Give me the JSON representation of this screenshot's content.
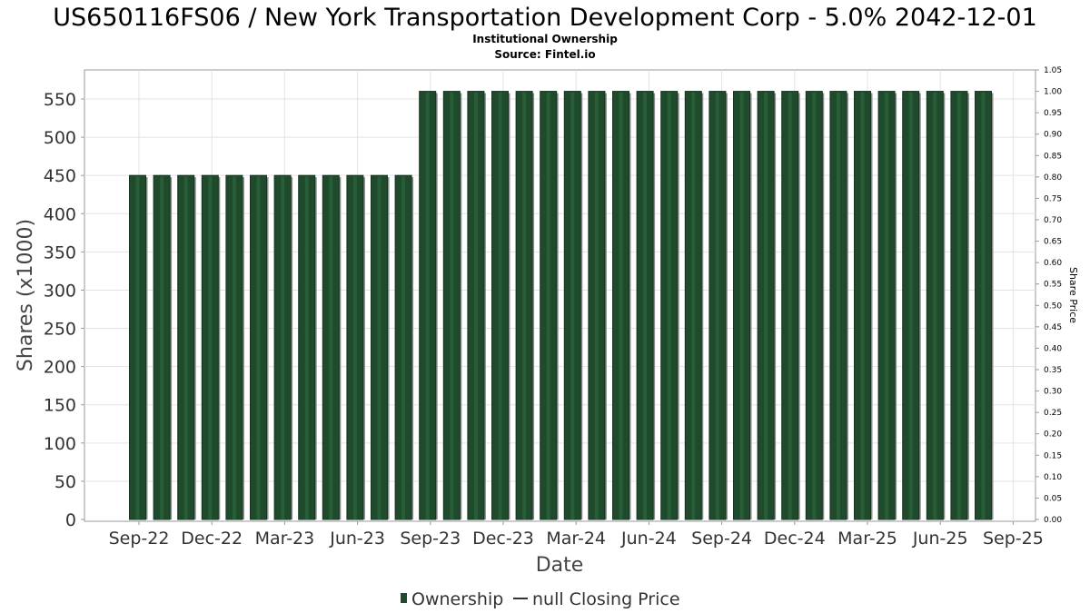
{
  "chart_data": {
    "type": "bar",
    "title": "US650116FS06 / New York Transportation Development Corp - 5.0% 2042-12-01",
    "subtitle_lines": [
      "Institutional Ownership",
      "Source: Fintel.io"
    ],
    "xlabel": "Date",
    "ylabel": "Shares (x1000)",
    "y2label": "Share Price",
    "ylim": [
      0,
      580
    ],
    "y2lim": [
      0,
      1.05
    ],
    "yticks": [
      "0",
      "50",
      "100",
      "150",
      "200",
      "250",
      "300",
      "350",
      "400",
      "450",
      "500",
      "550"
    ],
    "y2ticks": [
      "0.00",
      "0.05",
      "0.10",
      "0.15",
      "0.20",
      "0.25",
      "0.30",
      "0.35",
      "0.40",
      "0.45",
      "0.50",
      "0.55",
      "0.60",
      "0.65",
      "0.70",
      "0.75",
      "0.80",
      "0.85",
      "0.90",
      "0.95",
      "1.00",
      "1.05"
    ],
    "xticks": [
      "Sep-22",
      "Dec-22",
      "Mar-23",
      "Jun-23",
      "Sep-23",
      "Dec-23",
      "Mar-24",
      "Jun-24",
      "Sep-24",
      "Dec-24",
      "Mar-25",
      "Jun-25",
      "Sep-25"
    ],
    "grid": true,
    "legend_position": "bottom-center",
    "colors": {
      "bar": "#1f4a2b",
      "bar_shadow": "#8a8a8a",
      "line": "#333333"
    },
    "series": [
      {
        "name": "Ownership",
        "values": [
          450,
          450,
          450,
          450,
          450,
          450,
          450,
          450,
          450,
          450,
          450,
          450,
          560,
          560,
          560,
          560,
          560,
          560,
          560,
          560,
          560,
          560,
          560,
          560,
          560,
          560,
          560,
          560,
          560,
          560,
          560,
          560,
          560,
          560,
          560,
          560
        ]
      }
    ],
    "legend": [
      {
        "label": "Ownership",
        "kind": "bar"
      },
      {
        "label": "null Closing Price",
        "kind": "line"
      }
    ]
  }
}
